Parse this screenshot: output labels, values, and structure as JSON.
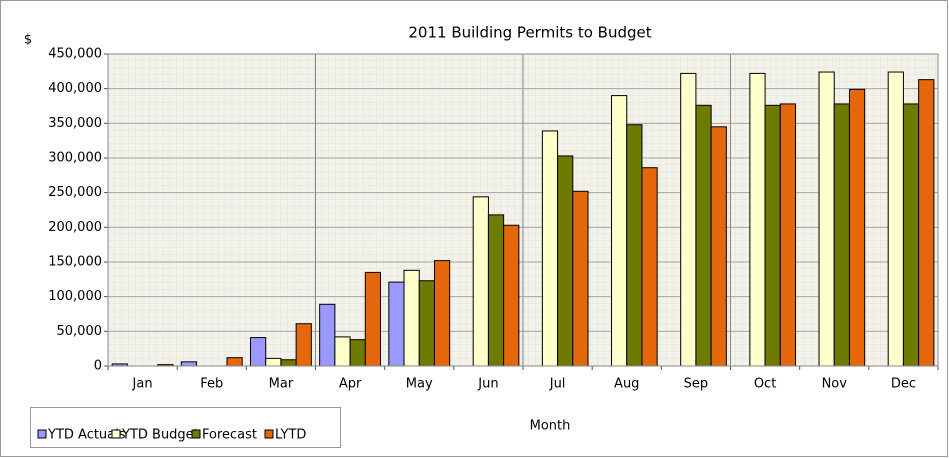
{
  "chart_data": {
    "type": "bar",
    "title": "2011  Building Permits to Budget",
    "y_label": "$",
    "x_label": "Month",
    "categories": [
      "Jan",
      "Feb",
      "Mar",
      "Apr",
      "May",
      "Jun",
      "Jul",
      "Aug",
      "Sep",
      "Oct",
      "Nov",
      "Dec"
    ],
    "series": [
      {
        "name": "YTD Actuals",
        "color": "#9999ff",
        "values": [
          3000,
          6000,
          41000,
          89000,
          121000,
          null,
          null,
          null,
          null,
          null,
          null,
          null
        ]
      },
      {
        "name": "YTD Budget",
        "color": "#ffffcc",
        "values": [
          0,
          0,
          11000,
          42000,
          138000,
          244000,
          339000,
          390000,
          422000,
          422000,
          424000,
          424000
        ]
      },
      {
        "name": "Forecast",
        "color": "#6f7a00",
        "values": [
          0,
          0,
          9000,
          38000,
          123000,
          218000,
          303000,
          348000,
          376000,
          376000,
          378000,
          378000
        ]
      },
      {
        "name": "LYTD",
        "color": "#e4670c",
        "values": [
          2000,
          12000,
          61000,
          135000,
          152000,
          203000,
          252000,
          286000,
          345000,
          378000,
          399000,
          413000
        ]
      }
    ],
    "ylim": [
      0,
      450000
    ],
    "yticks": [
      0,
      {
        "value": 50000,
        "label": "50,000"
      },
      {
        "value": 100000,
        "label": "100,000"
      },
      {
        "value": 150000,
        "label": "150,000"
      },
      {
        "value": 200000,
        "label": "200,000"
      },
      {
        "value": 250000,
        "label": "250,000"
      },
      {
        "value": 300000,
        "label": "300,000"
      },
      {
        "value": 350000,
        "label": "350,000"
      },
      {
        "value": 400000,
        "label": "400,000"
      },
      {
        "value": 450000,
        "label": "450,000"
      }
    ],
    "grid": true,
    "legend": "bottom-left"
  }
}
